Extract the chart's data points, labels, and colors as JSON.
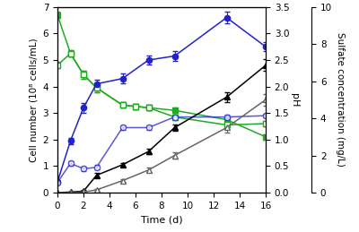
{
  "blue_filled_x": [
    0,
    1,
    2,
    3,
    5,
    7,
    9,
    13,
    16
  ],
  "blue_filled_y": [
    0.4,
    1.95,
    3.2,
    4.1,
    4.3,
    5.0,
    5.15,
    6.6,
    5.5
  ],
  "blue_filled_err": [
    0.08,
    0.12,
    0.18,
    0.15,
    0.18,
    0.18,
    0.18,
    0.22,
    0.18
  ],
  "blue_open_x": [
    0,
    1,
    2,
    3,
    5,
    7,
    9,
    13,
    16
  ],
  "blue_open_y": [
    0.38,
    1.1,
    0.9,
    0.95,
    2.45,
    2.45,
    2.85,
    2.85,
    2.9
  ],
  "blue_open_err": [
    0.04,
    0.08,
    0.08,
    0.08,
    0.08,
    0.08,
    0.08,
    0.08,
    0.08
  ],
  "green_filled_x": [
    0,
    1,
    2,
    3,
    5,
    6,
    7,
    9,
    13,
    16
  ],
  "green_filled_y": [
    6.7,
    5.25,
    4.45,
    3.95,
    3.3,
    3.25,
    3.2,
    3.1,
    2.75,
    2.1
  ],
  "green_filled_err": [
    0.12,
    0.12,
    0.15,
    0.18,
    0.1,
    0.1,
    0.1,
    0.1,
    0.1,
    0.1
  ],
  "green_open_x": [
    0,
    1,
    2,
    3,
    5,
    6,
    7,
    9,
    13,
    16
  ],
  "green_open_y": [
    4.8,
    5.25,
    4.45,
    3.95,
    3.3,
    3.25,
    3.2,
    2.85,
    2.55,
    2.6
  ],
  "green_open_err": [
    0.12,
    0.12,
    0.15,
    0.18,
    0.1,
    0.1,
    0.1,
    0.1,
    0.1,
    0.1
  ],
  "black_filled_x": [
    0,
    1,
    2,
    3,
    5,
    7,
    9,
    13,
    16
  ],
  "black_filled_y": [
    0.0,
    0.02,
    0.05,
    0.65,
    1.05,
    1.55,
    2.45,
    3.6,
    4.8
  ],
  "black_filled_err": [
    0.01,
    0.01,
    0.04,
    0.08,
    0.08,
    0.1,
    0.12,
    0.18,
    0.22
  ],
  "gray_open_x": [
    0,
    1,
    2,
    3,
    5,
    7,
    9,
    13,
    16
  ],
  "gray_open_y": [
    0.0,
    0.0,
    0.02,
    0.1,
    0.45,
    0.85,
    1.4,
    2.45,
    3.5
  ],
  "gray_open_err": [
    0.01,
    0.01,
    0.02,
    0.04,
    0.06,
    0.08,
    0.12,
    0.18,
    0.22
  ],
  "ylabel_left": "Cell number (10⁸ cells/mL)",
  "ylabel_mid": "pH",
  "ylabel_right": "Sulfate concentration (mg/L)",
  "xlabel": "Time (d)",
  "ylim_left": [
    0,
    7
  ],
  "ylim_mid": [
    0.0,
    3.5
  ],
  "ylim_right": [
    0,
    10
  ],
  "xlim": [
    0,
    16
  ],
  "xticks": [
    0,
    2,
    4,
    6,
    8,
    10,
    12,
    14,
    16
  ],
  "blue_color": "#2222cc",
  "green_color": "#22aa22",
  "black_color": "#000000",
  "gray_color": "#666666"
}
